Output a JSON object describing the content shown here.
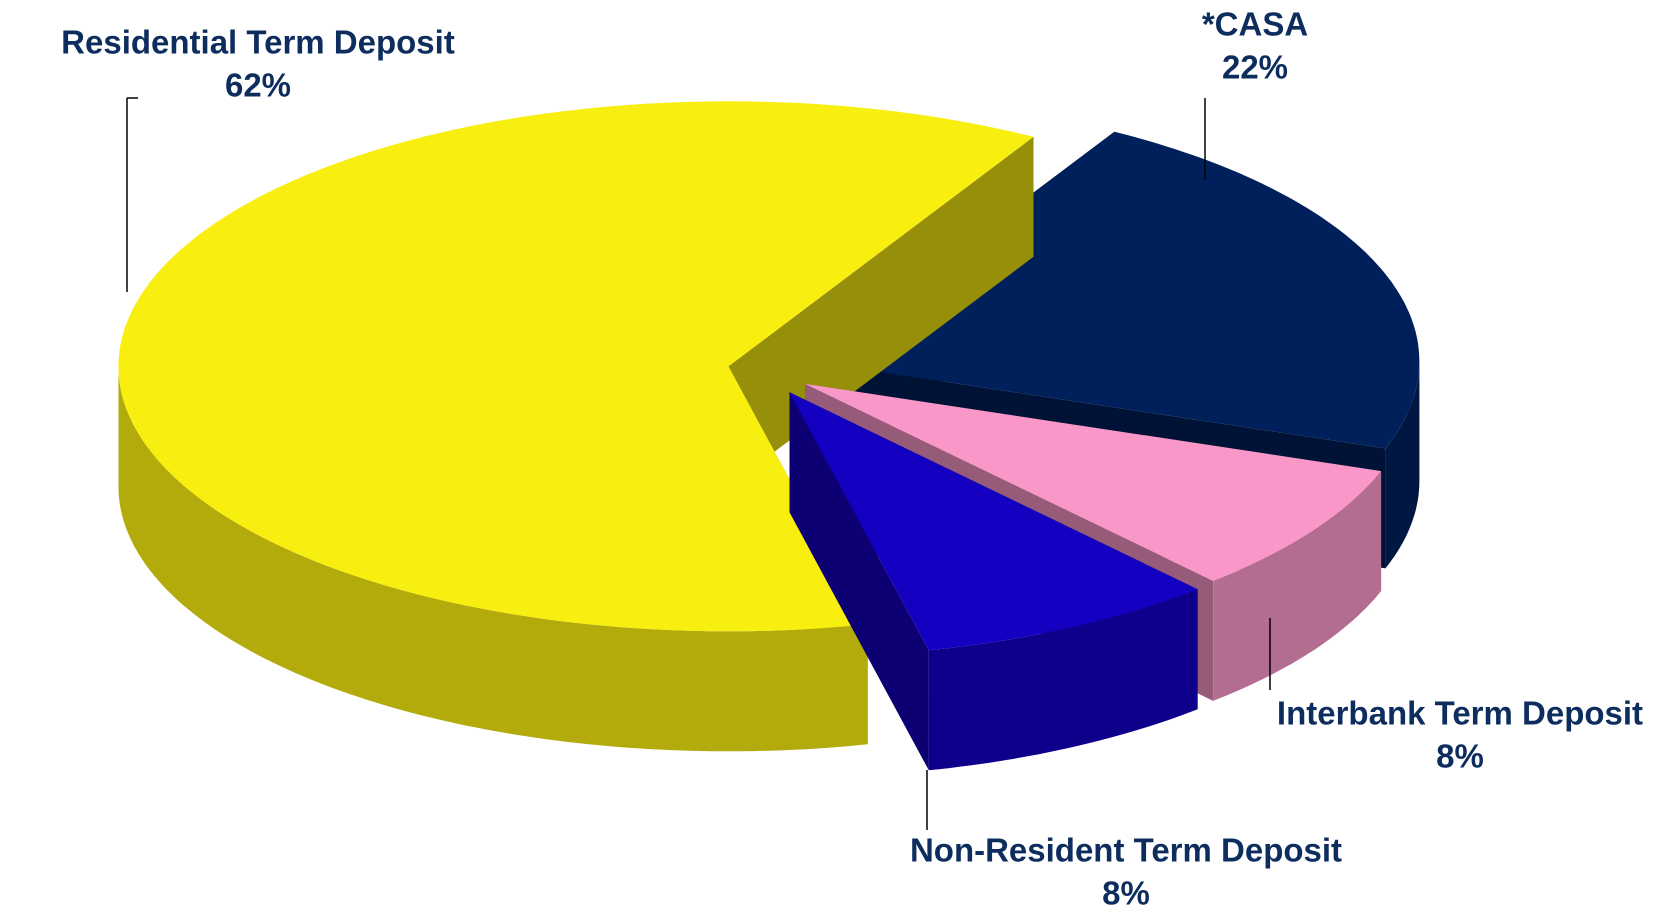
{
  "chart_data": {
    "type": "pie3d",
    "categories": [
      "*CASA",
      "Interbank Term Deposit",
      "Non-Resident Term Deposit",
      "Residential Term Deposit"
    ],
    "values": [
      22,
      8,
      8,
      62
    ],
    "value_labels": [
      "22%",
      "8%",
      "8%",
      "62%"
    ],
    "colors": [
      "#00205b",
      "#f998c8",
      "#1400c0",
      "#f8ee10"
    ]
  }
}
